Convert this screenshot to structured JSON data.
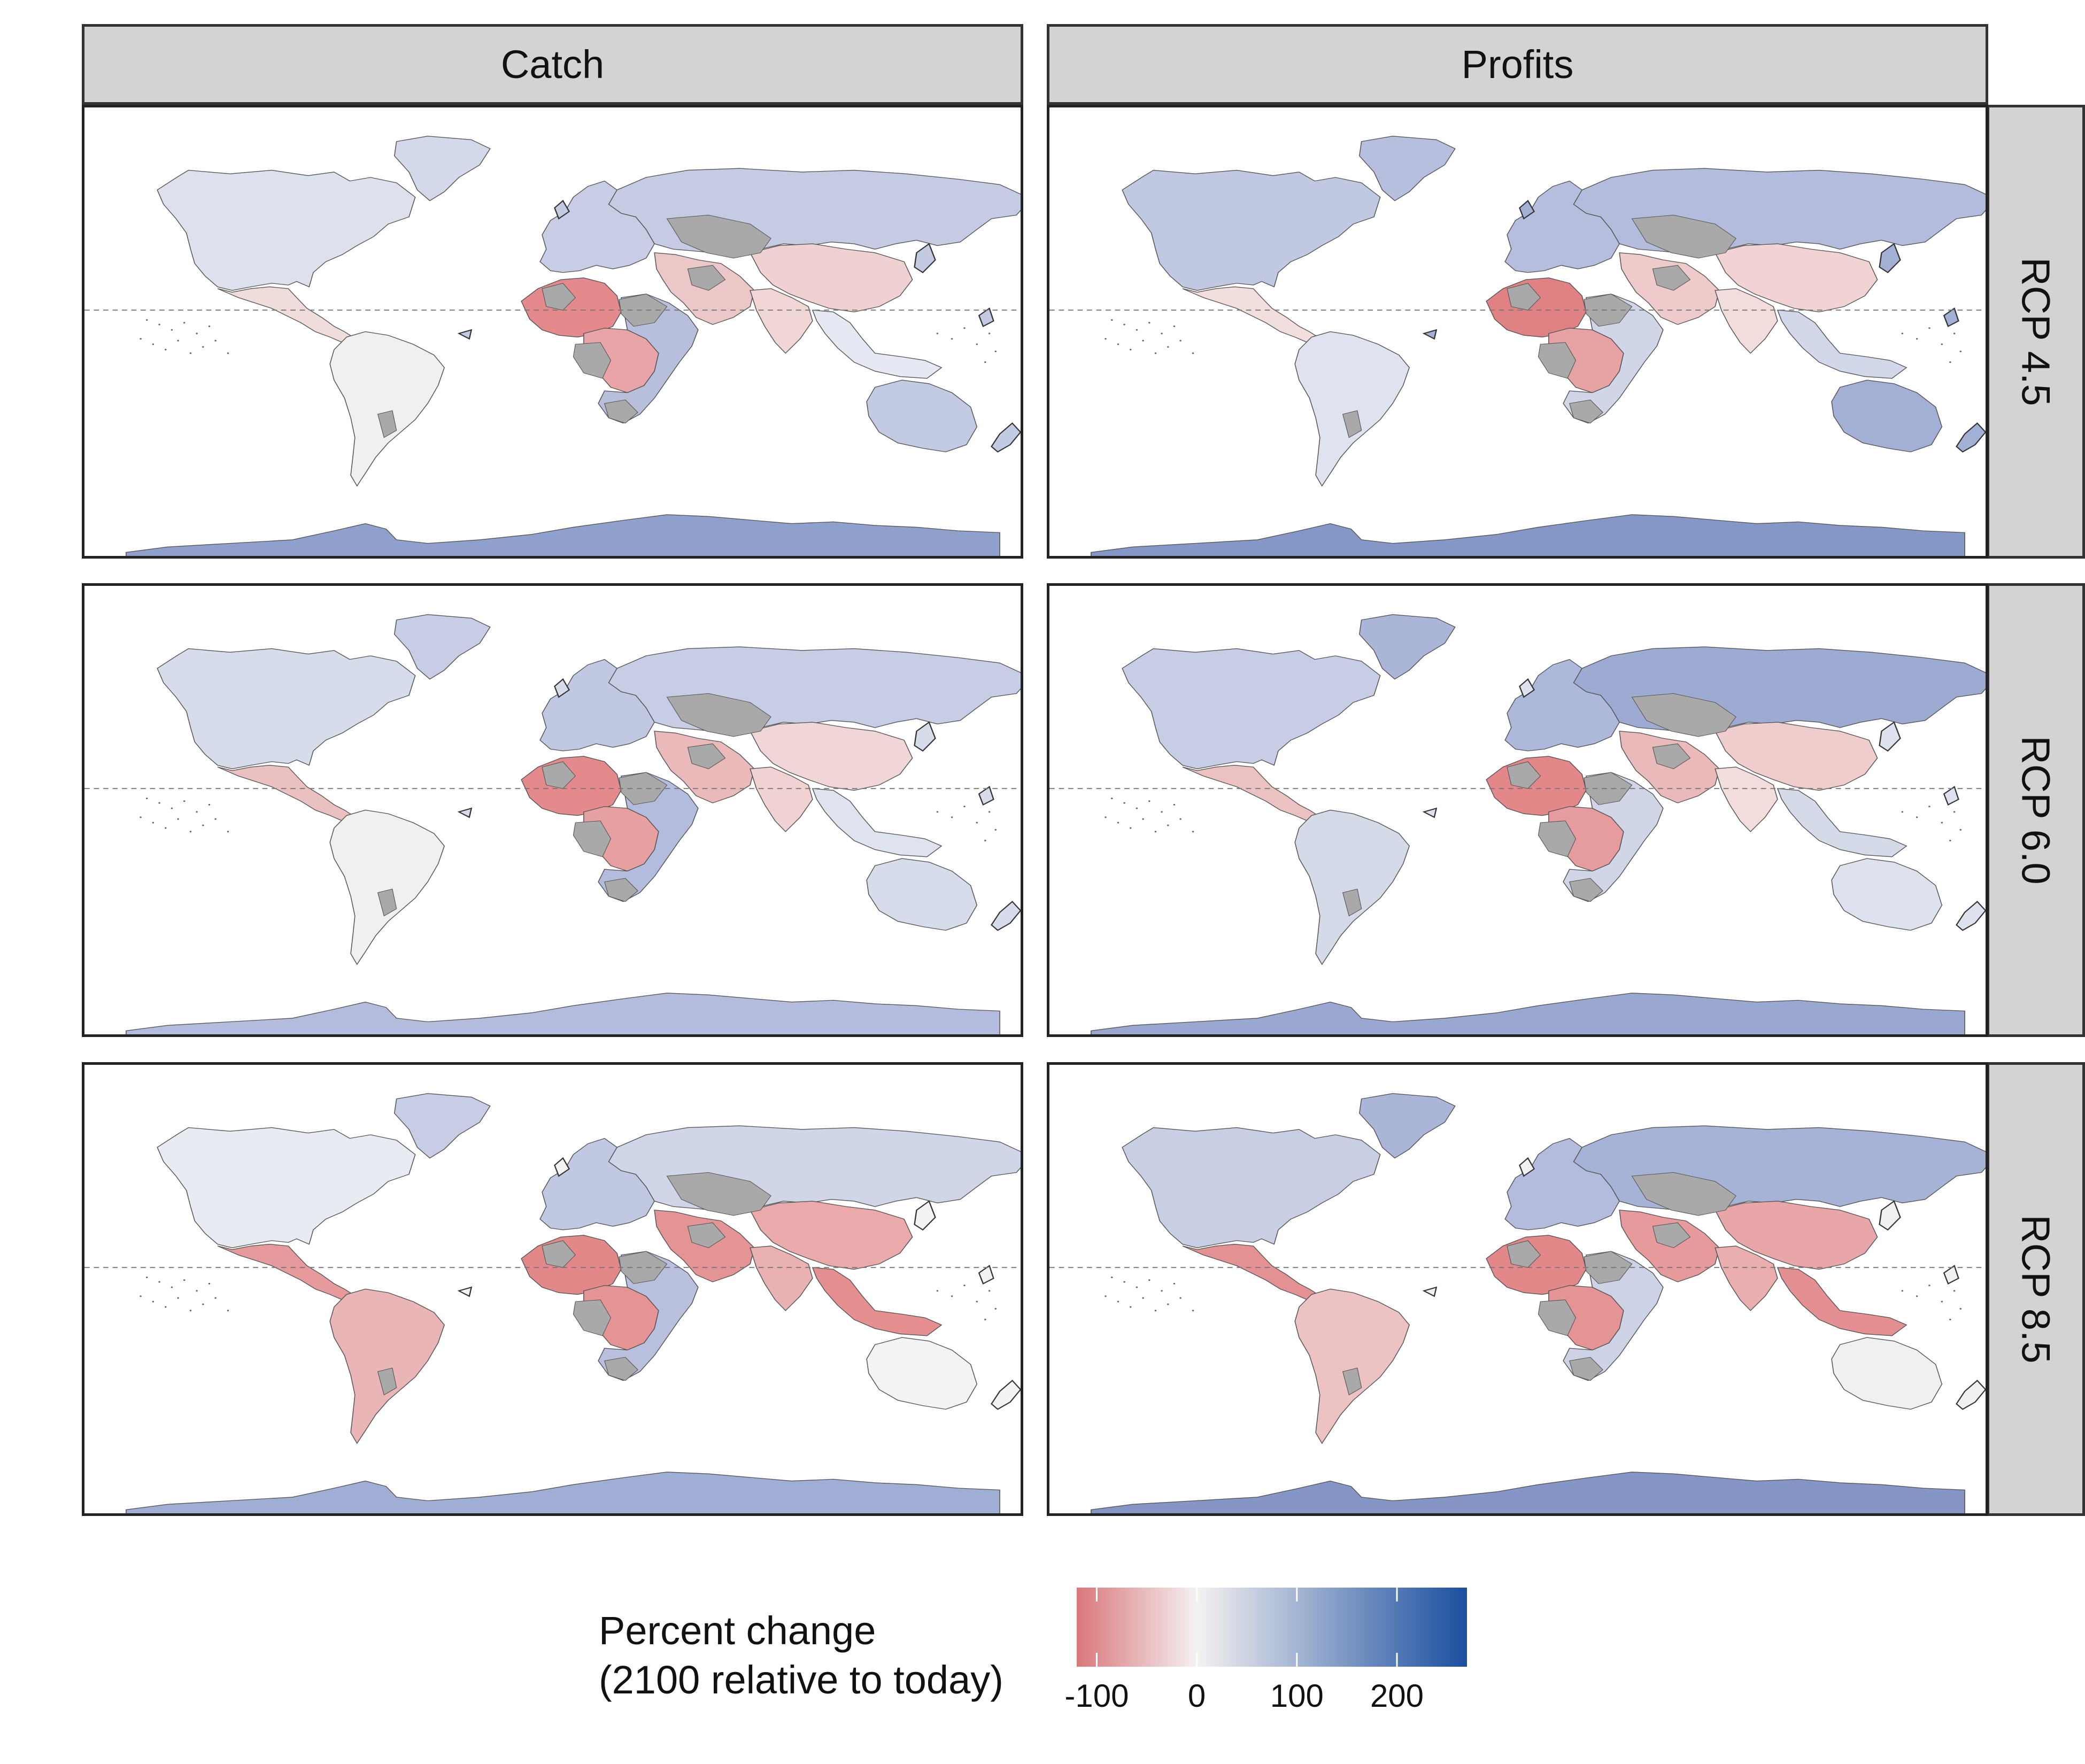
{
  "facets": {
    "columns": [
      "Catch",
      "Profits"
    ],
    "rows": [
      "RCP 4.5",
      "RCP 6.0",
      "RCP 8.5"
    ]
  },
  "legend": {
    "title_line1": "Percent change",
    "title_line2": "(2100 relative to today)",
    "ticks": [
      "-100",
      "0",
      "100",
      "200"
    ],
    "tick_values": [
      -100,
      0,
      100,
      200
    ],
    "range": [
      -120,
      270
    ],
    "colors": {
      "low": "#d9777a",
      "mid": "#f5f1f1",
      "high": "#1a4fa0",
      "no_data": "#a9a9a9"
    }
  },
  "map_colors": {
    "Catch|RCP 4.5": {
      "NAm": "#dde1ee",
      "Gr": "#d3d8ea",
      "Eur": "#c6cde4",
      "Rus": "#c4cbe3",
      "LatC": "#f1dcdc",
      "SAm": "#f0f0f1",
      "WAf": "#e58a8c",
      "CAf": "#e8a4a6",
      "EAf": "#b8bfdc",
      "MEa": "#ecc7c7",
      "Ind": "#f1d6d6",
      "Chn": "#f0d1d1",
      "SEA": "#e6e9f3",
      "Aus": "#c3cbe3",
      "Ant": "#8fa0cc"
    },
    "Profits|RCP 4.5": {
      "NAm": "#c1c9e2",
      "Gr": "#b6bfdd",
      "Eur": "#b5bedc",
      "Rus": "#b3bcdc",
      "LatC": "#f3dede",
      "SAm": "#dfe3ef",
      "WAf": "#e08284",
      "CAf": "#e7a2a4",
      "EAf": "#d0d5e8",
      "MEa": "#eecaca",
      "Ind": "#f3dcdc",
      "Chn": "#f1d3d3",
      "SEA": "#d2d7ea",
      "Aus": "#a3b0d6",
      "Ant": "#8597c7"
    },
    "Catch|RCP 6.0": {
      "NAm": "#d7dceb",
      "Gr": "#c6cde4",
      "Eur": "#c0c8e2",
      "Rus": "#c6cde4",
      "LatC": "#ebc0c1",
      "SAm": "#f2efef",
      "WAf": "#e58a8c",
      "CAf": "#e7a0a2",
      "EAf": "#b3bcdc",
      "MEa": "#eab9ba",
      "Ind": "#f0d2d2",
      "Chn": "#f0d6d6",
      "SEA": "#dfe3ef",
      "Aus": "#d7dceb",
      "Ant": "#b3bcdc"
    },
    "Profits|RCP 6.0": {
      "NAm": "#c6cde4",
      "Gr": "#aab5d8",
      "Eur": "#aeb8da",
      "Rus": "#9dabd3",
      "LatC": "#ebc1c2",
      "SAm": "#d5dae9",
      "WAf": "#e38789",
      "CAf": "#e69c9e",
      "EAf": "#d0d5e8",
      "MEa": "#eab9ba",
      "Ind": "#f3dcdc",
      "Chn": "#efcdcd",
      "SEA": "#d5dae9",
      "Aus": "#dee2ee",
      "Ant": "#9aa8d1"
    },
    "Catch|RCP 8.5": {
      "NAm": "#e9ebf2",
      "Gr": "#c6cde4",
      "Eur": "#c0c8e2",
      "Rus": "#d0d5e8",
      "LatC": "#e69a9c",
      "SAm": "#eab5b6",
      "WAf": "#e28889",
      "CAf": "#e59496",
      "EAf": "#b8c0dd",
      "MEa": "#e59496",
      "Ind": "#e9b1b2",
      "Chn": "#eaa9ab",
      "SEA": "#e58f91",
      "Aus": "#f3f3f4",
      "Ant": "#a0add4"
    },
    "Profits|RCP 8.5": {
      "NAm": "#c8cee4",
      "Gr": "#aab5d8",
      "Eur": "#b3bcdc",
      "Rus": "#a7b2d7",
      "LatC": "#e49193",
      "SAm": "#ecc2c3",
      "WAf": "#e28889",
      "CAf": "#e59496",
      "EAf": "#cdd3e7",
      "MEa": "#e69a9c",
      "Ind": "#eaaeaf",
      "Chn": "#e8a6a8",
      "SEA": "#e48f91",
      "Aus": "#f0f0f1",
      "Ant": "#8495c6"
    }
  }
}
